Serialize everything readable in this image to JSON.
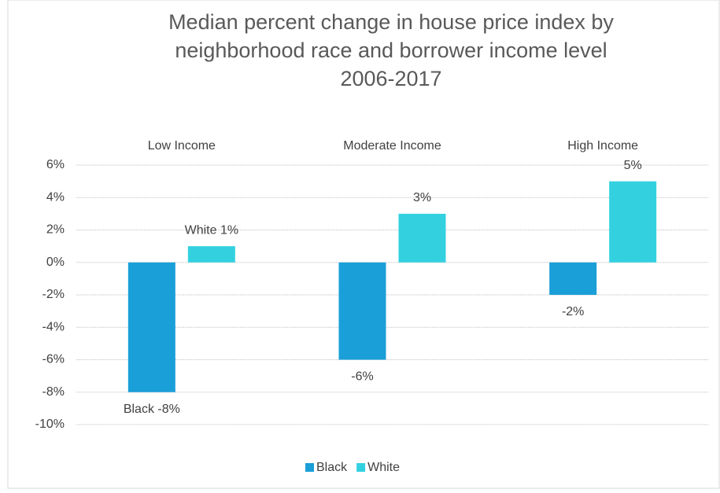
{
  "chart_data": {
    "type": "bar",
    "title": [
      "Median percent change in house price index by",
      "neighborhood race and borrower income level",
      "2006-2017"
    ],
    "categories": [
      "Low Income",
      "Moderate Income",
      "High Income"
    ],
    "series": [
      {
        "name": "Black",
        "color": "#1a9fd8",
        "values": [
          -8,
          -6,
          -2
        ],
        "value_labels": [
          "Black -8%",
          "-6%",
          "-2%"
        ]
      },
      {
        "name": "White",
        "color": "#33d1e0",
        "values": [
          1,
          3,
          5
        ],
        "value_labels": [
          "White 1%",
          "3%",
          "5%"
        ]
      }
    ],
    "ylim": [
      -10,
      6
    ],
    "yticks": [
      {
        "value": -10,
        "label": "-10%"
      },
      {
        "value": -8,
        "label": "-8%"
      },
      {
        "value": -6,
        "label": "-6%"
      },
      {
        "value": -4,
        "label": "-4%"
      },
      {
        "value": -2,
        "label": "-2%"
      },
      {
        "value": 0,
        "label": "0%"
      },
      {
        "value": 2,
        "label": "2%"
      },
      {
        "value": 4,
        "label": "4%"
      },
      {
        "value": 6,
        "label": "6%"
      }
    ],
    "grid": true,
    "legend": "bottom"
  }
}
